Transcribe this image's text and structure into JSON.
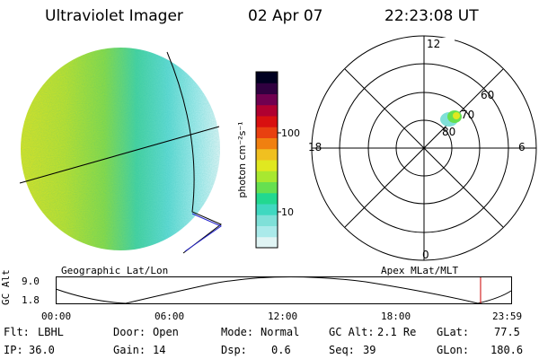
{
  "header": {
    "title": "Ultraviolet Imager",
    "date": "02 Apr 07",
    "time": "22:23:08 UT"
  },
  "geo_panel": {
    "label": "Geographic Lat/Lon"
  },
  "colorbar": {
    "axis_label": "photon cm⁻²s⁻¹",
    "scale": "log",
    "ticks": [
      {
        "label": "100",
        "value": 100
      },
      {
        "label": "10",
        "value": 10
      }
    ],
    "colors": [
      "#e0f4f4",
      "#aaeaea",
      "#7fe0d8",
      "#40d8c0",
      "#22d890",
      "#66e050",
      "#a8e830",
      "#e0e820",
      "#f0c020",
      "#f08010",
      "#e84010",
      "#d81010",
      "#b00030",
      "#700050",
      "#300040",
      "#000020"
    ]
  },
  "polar_panel": {
    "label": "Apex MLat/MLT",
    "mlt_labels": {
      "top": "12",
      "bottom": "0",
      "left": "18",
      "right": "6"
    },
    "lat_labels": [
      "60",
      "70",
      "80"
    ]
  },
  "timeline": {
    "axis_label": "GC Alt",
    "y_ticks": [
      "9.0",
      "1.8"
    ],
    "x_ticks": [
      "00:00",
      "06:00",
      "12:00",
      "18:00",
      "23:59"
    ],
    "current_time_hours": 22.386
  },
  "info": {
    "flt_label": "Flt:",
    "flt_value": "LBHL",
    "ip_label": "IP:",
    "ip_value": "36.0",
    "door_label": "Door:",
    "door_value": "Open",
    "gain_label": "Gain:",
    "gain_value": "14",
    "mode_label": "Mode:",
    "mode_value": "Normal",
    "dsp_label": "Dsp:",
    "dsp_value": "0.6",
    "gcalt_label": "GC Alt:",
    "gcalt_value": "2.1 Re",
    "seq_label": "Seq:",
    "seq_value": "39",
    "glat_label": "GLat:",
    "glat_value": "77.5",
    "glon_label": "GLon:",
    "glon_value": "180.6"
  }
}
